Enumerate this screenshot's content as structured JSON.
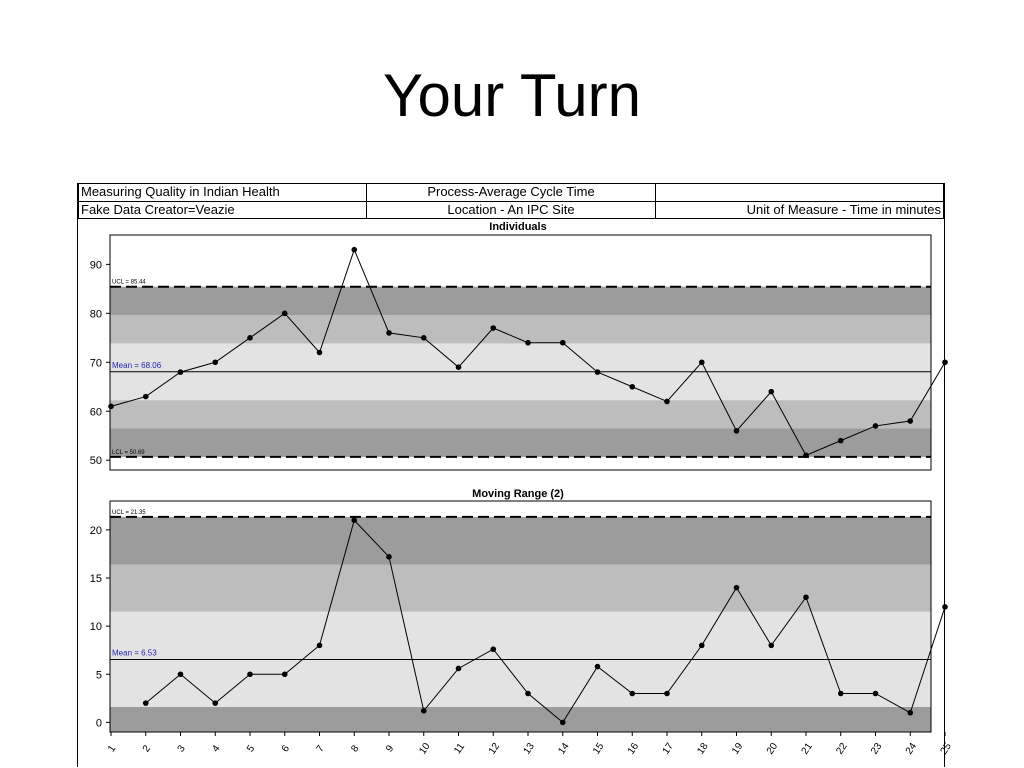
{
  "slide": {
    "title": "Your Turn"
  },
  "header": {
    "row1": [
      "Measuring Quality in Indian Health",
      "Process-Average Cycle Time",
      ""
    ],
    "row2": [
      "Fake Data Creator=Veazie",
      "Location - An IPC Site",
      "Unit of Measure - Time in minutes"
    ]
  },
  "chart_data": [
    {
      "type": "line",
      "title": "Individuals",
      "x": [
        1,
        2,
        3,
        4,
        5,
        6,
        7,
        8,
        9,
        10,
        11,
        12,
        13,
        14,
        15,
        16,
        17,
        18,
        19,
        20,
        21,
        22,
        23,
        24,
        25
      ],
      "values": [
        61,
        63,
        68,
        70,
        75,
        80,
        72,
        93,
        76,
        75,
        69,
        77,
        74,
        74,
        68,
        65,
        62,
        70,
        56,
        64,
        51,
        54,
        57,
        58,
        70
      ],
      "ylim": [
        48,
        96
      ],
      "yticks": [
        50,
        60,
        70,
        80,
        90
      ],
      "mean": 68.06,
      "mean_label": "Mean = 68.06",
      "ucl": 85.44,
      "ucl_label": "UCL = 85.44",
      "lcl": 50.69,
      "lcl_label": "LCL = 50.69",
      "bands": [
        {
          "from": 50.69,
          "to": 56.48,
          "color": "#9c9c9c"
        },
        {
          "from": 56.48,
          "to": 62.27,
          "color": "#bdbdbd"
        },
        {
          "from": 62.27,
          "to": 73.85,
          "color": "#e3e3e3"
        },
        {
          "from": 73.85,
          "to": 79.64,
          "color": "#bdbdbd"
        },
        {
          "from": 79.64,
          "to": 85.44,
          "color": "#9c9c9c"
        }
      ]
    },
    {
      "type": "line",
      "title": "Moving Range (2)",
      "x": [
        2,
        3,
        4,
        5,
        6,
        7,
        8,
        9,
        10,
        11,
        12,
        13,
        14,
        15,
        16,
        17,
        18,
        19,
        20,
        21,
        22,
        23,
        24,
        25
      ],
      "values": [
        2,
        5,
        2,
        5,
        5,
        8,
        21,
        17.2,
        1.2,
        5.6,
        7.6,
        3,
        0,
        5.8,
        3,
        3,
        8,
        14,
        8,
        13,
        3,
        3,
        1,
        12
      ],
      "ylim": [
        -1,
        23
      ],
      "yticks": [
        0,
        5,
        10,
        15,
        20
      ],
      "mean": 6.53,
      "mean_label": "Mean = 6.53",
      "ucl": 21.35,
      "ucl_label": "UCL = 21.35",
      "bands": [
        {
          "from": -1,
          "to": 1.6,
          "color": "#9c9c9c"
        },
        {
          "from": 1.6,
          "to": 11.5,
          "color": "#e3e3e3"
        },
        {
          "from": 11.5,
          "to": 16.4,
          "color": "#bdbdbd"
        },
        {
          "from": 16.4,
          "to": 21.35,
          "color": "#9c9c9c"
        }
      ],
      "xtick_labels": [
        "1",
        "2",
        "3",
        "4",
        "5",
        "6",
        "7",
        "8",
        "9",
        "10",
        "11",
        "12",
        "13",
        "14",
        "15",
        "16",
        "17",
        "18",
        "19",
        "20",
        "21",
        "22",
        "23",
        "24",
        "25"
      ]
    }
  ],
  "colors": {
    "mean_label": "#1f1fb4",
    "line": "#000000"
  }
}
